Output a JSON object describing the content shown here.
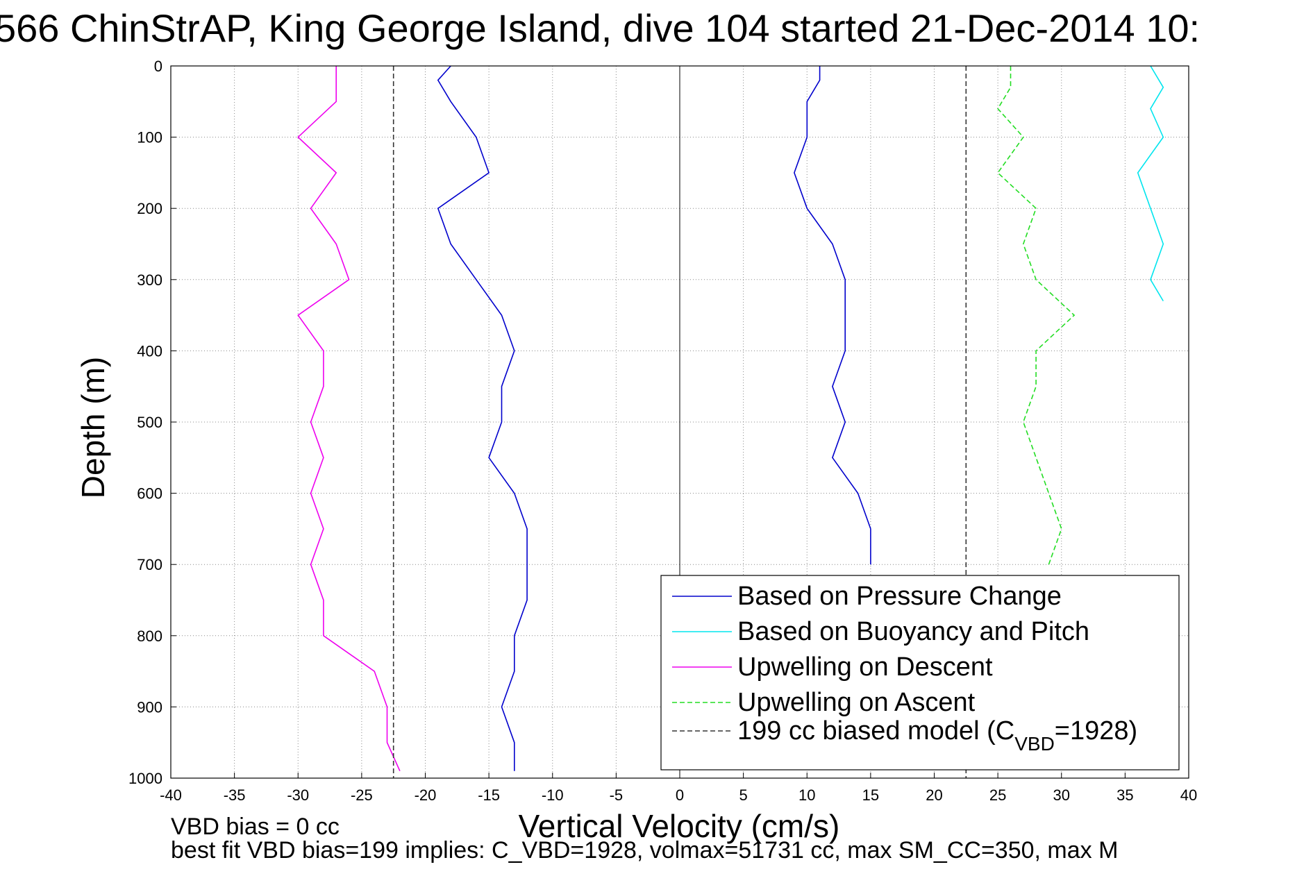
{
  "chart_data": {
    "type": "line",
    "title": "566 ChinStrAP, King George Island, dive 104 started 21-Dec-2014 10:",
    "xlabel": "Vertical Velocity (cm/s)",
    "ylabel": "Depth (m)",
    "xlim": [
      -40,
      40
    ],
    "ylim": [
      0,
      1000
    ],
    "y_reversed": true,
    "grid": true,
    "xticks": [
      "-40",
      "-35",
      "-30",
      "-25",
      "-20",
      "-15",
      "-10",
      "-5",
      "0",
      "5",
      "10",
      "15",
      "20",
      "25",
      "30",
      "35",
      "40"
    ],
    "yticks": [
      "0",
      "100",
      "200",
      "300",
      "400",
      "500",
      "600",
      "700",
      "800",
      "900",
      "1000"
    ],
    "legend_position": "bottom-right",
    "series": [
      {
        "name": "Based on Pressure Change",
        "color": "#0000cc",
        "dash": "solid",
        "depth": [
          0,
          20,
          50,
          100,
          150,
          200,
          250,
          300,
          350,
          400,
          450,
          500,
          550,
          600,
          650,
          700,
          750,
          800,
          850,
          900,
          950,
          990
        ],
        "velocity": [
          -18,
          -19,
          -18,
          -16,
          -15,
          -19,
          -18,
          -16,
          -14,
          -13,
          -14,
          -14,
          -15,
          -13,
          -12,
          -12,
          -12,
          -13,
          -13,
          -14,
          -13,
          -13
        ]
      },
      {
        "name": "Based on Pressure Change",
        "color": "#0000cc",
        "dash": "solid",
        "depth": [
          0,
          20,
          50,
          100,
          150,
          200,
          250,
          300,
          350,
          400,
          450,
          500,
          550,
          600,
          650,
          700
        ],
        "velocity": [
          11,
          11,
          10,
          10,
          9,
          10,
          12,
          13,
          13,
          13,
          12,
          13,
          12,
          14,
          15,
          15
        ]
      },
      {
        "name": "Based on Buoyancy and Pitch",
        "color": "#00e5ee",
        "dash": "solid",
        "depth": [
          0,
          30,
          60,
          100,
          150,
          200,
          250,
          300,
          330
        ],
        "velocity": [
          37,
          38,
          37,
          38,
          36,
          37,
          38,
          37,
          38
        ]
      },
      {
        "name": "Upwelling on Descent",
        "color": "#ee00ee",
        "dash": "solid",
        "depth": [
          0,
          50,
          100,
          150,
          200,
          250,
          300,
          350,
          400,
          450,
          500,
          550,
          600,
          650,
          700,
          750,
          800,
          850,
          900,
          950,
          990
        ],
        "velocity": [
          -27,
          -27,
          -30,
          -27,
          -29,
          -27,
          -26,
          -30,
          -28,
          -28,
          -29,
          -28,
          -29,
          -28,
          -29,
          -28,
          -28,
          -24,
          -23,
          -23,
          -22
        ]
      },
      {
        "name": "Upwelling on Ascent",
        "color": "#22dd22",
        "dash": "dashed",
        "depth": [
          0,
          30,
          60,
          100,
          150,
          200,
          250,
          300,
          350,
          400,
          450,
          500,
          550,
          600,
          650,
          700
        ],
        "velocity": [
          26,
          26,
          25,
          27,
          25,
          28,
          27,
          28,
          31,
          28,
          28,
          27,
          28,
          29,
          30,
          29
        ]
      },
      {
        "name": "199 cc biased model (C_VBD=1928)",
        "color": "#333333",
        "dash": "dashed",
        "depth": [
          0,
          1000
        ],
        "velocity": [
          -22.5,
          -22.5
        ]
      },
      {
        "name": "199 cc biased model (C_VBD=1928)",
        "color": "#333333",
        "dash": "dashed",
        "depth": [
          0,
          1000
        ],
        "velocity": [
          22.5,
          22.5
        ]
      }
    ],
    "legend": [
      {
        "label": "Based on Pressure Change",
        "color": "#0000cc",
        "dash": "solid"
      },
      {
        "label": "Based on Buoyancy and Pitch",
        "color": "#00e5ee",
        "dash": "solid"
      },
      {
        "label": "Upwelling on Descent",
        "color": "#ee00ee",
        "dash": "solid"
      },
      {
        "label": "Upwelling on Ascent",
        "color": "#22dd22",
        "dash": "dashed"
      },
      {
        "label": "199 cc biased model (C",
        "sub": "VBD",
        "suffix": "=1928)",
        "color": "#333333",
        "dash": "dashed"
      }
    ]
  },
  "notes": {
    "line1": "VBD bias = 0 cc",
    "line2": "best fit VBD bias=199 implies: C_VBD=1928, volmax=51731 cc, max SM_CC=350, max M"
  }
}
